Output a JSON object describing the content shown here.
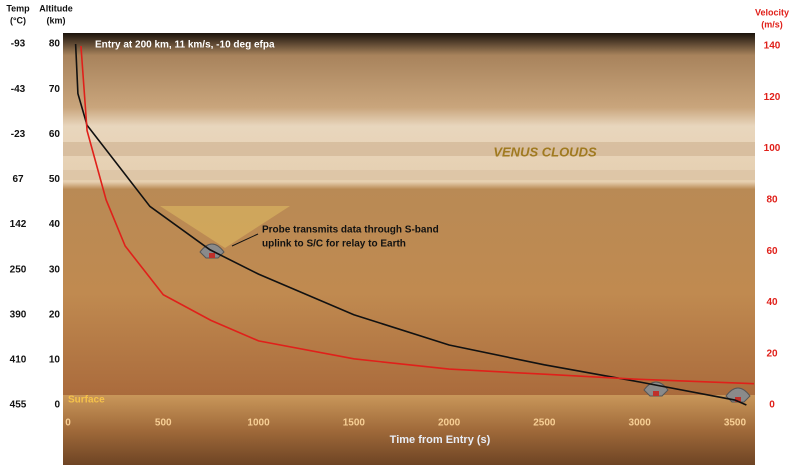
{
  "chart_data": {
    "type": "line",
    "title": "Entry at 200 km, 11 km/s, -10 deg efpa",
    "xlabel": "Time from Entry (s)",
    "ylabel": [
      "Altitude",
      "(km)"
    ],
    "y2label": [
      "Velocity",
      "(m/s)"
    ],
    "temp_label": [
      "Temp",
      "(°C)"
    ],
    "temp_values": [
      455,
      410,
      390,
      250,
      142,
      67,
      -23,
      -43,
      -93
    ],
    "clouds_label": "VENUS CLOUDS",
    "surface_label": "Surface",
    "probe_note": [
      "Probe transmits data through S-band",
      "uplink to S/C for relay to Earth"
    ],
    "xlim": [
      0,
      3600
    ],
    "xticks": [
      0,
      500,
      1000,
      1500,
      2000,
      2500,
      3000,
      3500
    ],
    "ylim": [
      0,
      80
    ],
    "yticks": [
      0,
      10,
      20,
      30,
      40,
      50,
      60,
      70,
      80
    ],
    "y2lim": [
      0,
      140
    ],
    "y2ticks": [
      0,
      20,
      40,
      60,
      80,
      100,
      120,
      140
    ],
    "series": [
      {
        "name": "Altitude",
        "color": "#111111",
        "x": [
          40,
          52,
          100,
          430,
          745,
          1000,
          1500,
          2000,
          2500,
          3000,
          3500,
          3560
        ],
        "values": [
          80,
          69,
          62,
          44,
          34.4,
          29,
          20,
          13.3,
          8.9,
          5.1,
          1.1,
          0
        ]
      },
      {
        "name": "Velocity",
        "color": "#e0201a",
        "axis": "y2",
        "x": [
          68,
          100,
          200,
          300,
          500,
          750,
          1000,
          1500,
          2000,
          2500,
          3000,
          3500,
          3600
        ],
        "values": [
          140,
          107,
          80,
          62,
          43,
          33,
          25,
          18,
          14,
          12,
          10,
          8.6,
          8.3
        ]
      }
    ]
  }
}
